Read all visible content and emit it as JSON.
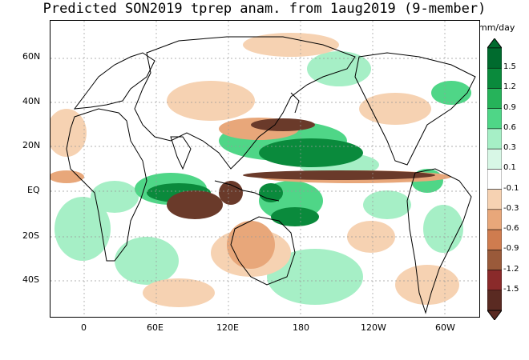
{
  "title": "Predicted SON2019 tprep anam. from 1aug2019 (9-member)",
  "units": "mm/day",
  "lat_labels": [
    "60N",
    "40N",
    "20N",
    "EQ",
    "20S",
    "40S"
  ],
  "lon_labels": [
    "0",
    "60E",
    "120E",
    "180",
    "120W",
    "60W"
  ],
  "colorbar": {
    "labels": [
      "1.5",
      "1.2",
      "0.9",
      "0.6",
      "0.3",
      "0.1",
      "-0.1",
      "-0.3",
      "-0.6",
      "-0.9",
      "-1.2",
      "-1.5"
    ],
    "colors": [
      "#006b2e",
      "#0a8a3c",
      "#26b35a",
      "#4fd687",
      "#a6efc6",
      "#d8f7e6",
      "#ffffff",
      "#f6d2b2",
      "#e8a77a",
      "#cf7c4f",
      "#9a5a3a",
      "#8a2a2a",
      "#5a2a22"
    ]
  },
  "map": {
    "wet_color": "#0a8a3c",
    "wet_light_color": "#4fd687",
    "dry_color": "#6a3a2a",
    "dry_light_color": "#e8a77a",
    "land_outline_color": "#000000",
    "gridline_color": "#999999"
  }
}
